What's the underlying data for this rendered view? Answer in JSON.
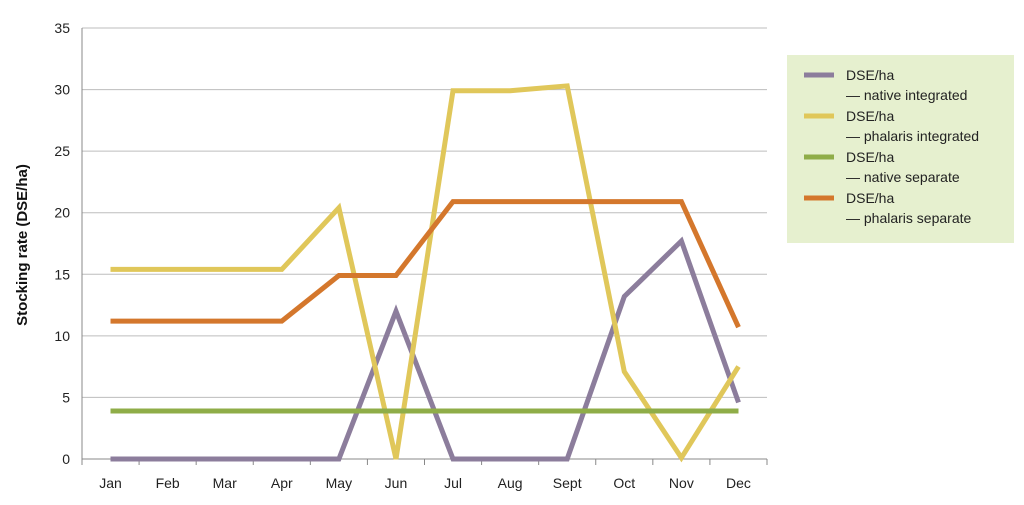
{
  "chart_data": {
    "type": "line",
    "ylabel": "Stocking rate (DSE/ha)",
    "xlabel": "",
    "categories": [
      "Jan",
      "Feb",
      "Mar",
      "Apr",
      "May",
      "Jun",
      "Jul",
      "Aug",
      "Sept",
      "Oct",
      "Nov",
      "Dec"
    ],
    "ylim": [
      0,
      35
    ],
    "yticks": [
      0,
      5,
      10,
      15,
      20,
      25,
      30,
      35
    ],
    "grid": true,
    "legend_position": "right",
    "legend_background": "#e6f0cf",
    "series": [
      {
        "name_line1": "DSE/ha",
        "name_line2": "— native integrated",
        "color": "#8c7d9c",
        "values": [
          0,
          0,
          0,
          0,
          0,
          12,
          0,
          0,
          0,
          13.2,
          17.7,
          4.6
        ]
      },
      {
        "name_line1": "DSE/ha",
        "name_line2": "— phalaris integrated",
        "color": "#e0c75a",
        "values": [
          15.4,
          15.4,
          15.4,
          15.4,
          20.4,
          0,
          29.9,
          29.9,
          30.3,
          7.1,
          0.1,
          7.5
        ]
      },
      {
        "name_line1": "DSE/ha",
        "name_line2": "— native separate",
        "color": "#8fad48",
        "values": [
          3.9,
          3.9,
          3.9,
          3.9,
          3.9,
          3.9,
          3.9,
          3.9,
          3.9,
          3.9,
          3.9,
          3.9
        ]
      },
      {
        "name_line1": "DSE/ha",
        "name_line2": "— phalaris separate",
        "color": "#d4772c",
        "values": [
          11.2,
          11.2,
          11.2,
          11.2,
          14.9,
          14.9,
          20.9,
          20.9,
          20.9,
          20.9,
          20.9,
          10.7
        ]
      }
    ]
  }
}
